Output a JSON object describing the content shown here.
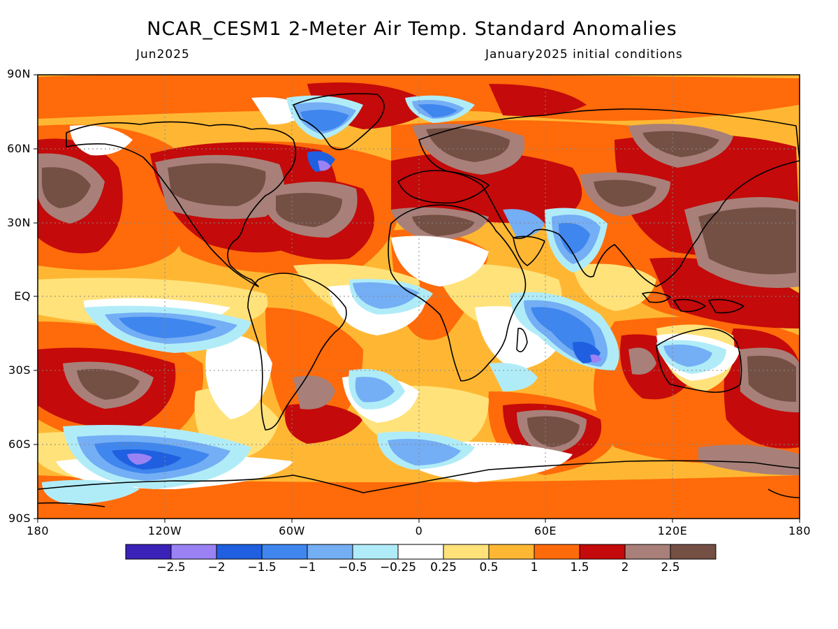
{
  "header": {
    "title": "NCAR_CESM1 2-Meter Air Temp. Standard Anomalies",
    "left_subtitle": "Jun2025",
    "right_subtitle": "January2025 initial conditions"
  },
  "axes": {
    "lat_labels": [
      "90N",
      "60N",
      "30N",
      "EQ",
      "30S",
      "60S",
      "90S"
    ],
    "lon_labels": [
      "180",
      "120W",
      "60W",
      "0",
      "60E",
      "120E",
      "180"
    ]
  },
  "colorbar": {
    "labels": [
      "−2.5",
      "−2",
      "−1.5",
      "−1",
      "−0.5",
      "−0.25",
      "0.25",
      "0.5",
      "1",
      "1.5",
      "2",
      "2.5"
    ],
    "colors": [
      "#3a22b8",
      "#9a82f5",
      "#1f5fe0",
      "#3f86ee",
      "#74aef5",
      "#b0ecf8",
      "#ffffff",
      "#ffe27a",
      "#ffb733",
      "#ff6a0a",
      "#c40a0a",
      "#a88079",
      "#744f43"
    ]
  },
  "map": {
    "projection": "equirectangular",
    "domain": "global",
    "grid_dotted": true,
    "base_color": "#ffb733"
  }
}
